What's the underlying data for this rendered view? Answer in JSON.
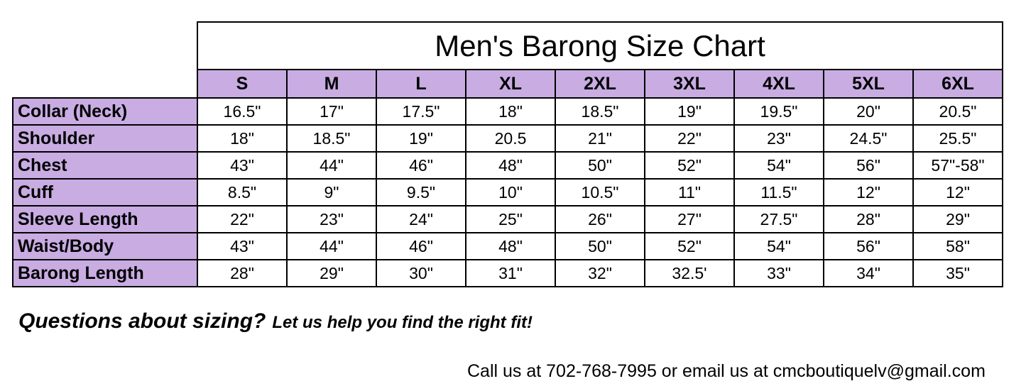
{
  "chart_data": {
    "type": "table",
    "title": "Men's Barong Size Chart",
    "columns": [
      "S",
      "M",
      "L",
      "XL",
      "2XL",
      "3XL",
      "4XL",
      "5XL",
      "6XL"
    ],
    "rows": [
      {
        "label": "Collar (Neck)",
        "values": [
          "16.5\"",
          "17\"",
          "17.5\"",
          "18\"",
          "18.5\"",
          "19\"",
          "19.5\"",
          "20\"",
          "20.5\""
        ]
      },
      {
        "label": "Shoulder",
        "values": [
          "18\"",
          "18.5\"",
          "19\"",
          "20.5",
          "21\"",
          "22\"",
          "23\"",
          "24.5\"",
          "25.5\""
        ]
      },
      {
        "label": "Chest",
        "values": [
          "43\"",
          "44\"",
          "46\"",
          "48\"",
          "50\"",
          "52\"",
          "54\"",
          "56\"",
          "57\"-58\""
        ]
      },
      {
        "label": "Cuff",
        "values": [
          "8.5\"",
          "9\"",
          "9.5\"",
          "10\"",
          "10.5\"",
          "11\"",
          "11.5\"",
          "12\"",
          "12\""
        ]
      },
      {
        "label": "Sleeve Length",
        "values": [
          "22\"",
          "23\"",
          "24\"",
          "25\"",
          "26\"",
          "27\"",
          "27.5\"",
          "28\"",
          "29\""
        ]
      },
      {
        "label": "Waist/Body",
        "values": [
          "43\"",
          "44\"",
          "46\"",
          "48\"",
          "50\"",
          "52\"",
          "54\"",
          "56\"",
          "58\""
        ]
      },
      {
        "label": "Barong Length",
        "values": [
          "28\"",
          "29\"",
          "30\"",
          "31\"",
          "32\"",
          "32.5'",
          "33\"",
          "34\"",
          "35\""
        ]
      }
    ],
    "layout": {
      "header_fill_color": "#C8ACE2",
      "label_column_fill_color": "#C8ACE2",
      "grid_line_color": "#000000",
      "grid": true
    }
  },
  "footer": {
    "question_lead": "Questions about sizing?",
    "question_rest": "Let us help you find the right fit!",
    "contact": "Call us at 702-768-7995 or email us at cmcboutiquelv@gmail.com"
  }
}
